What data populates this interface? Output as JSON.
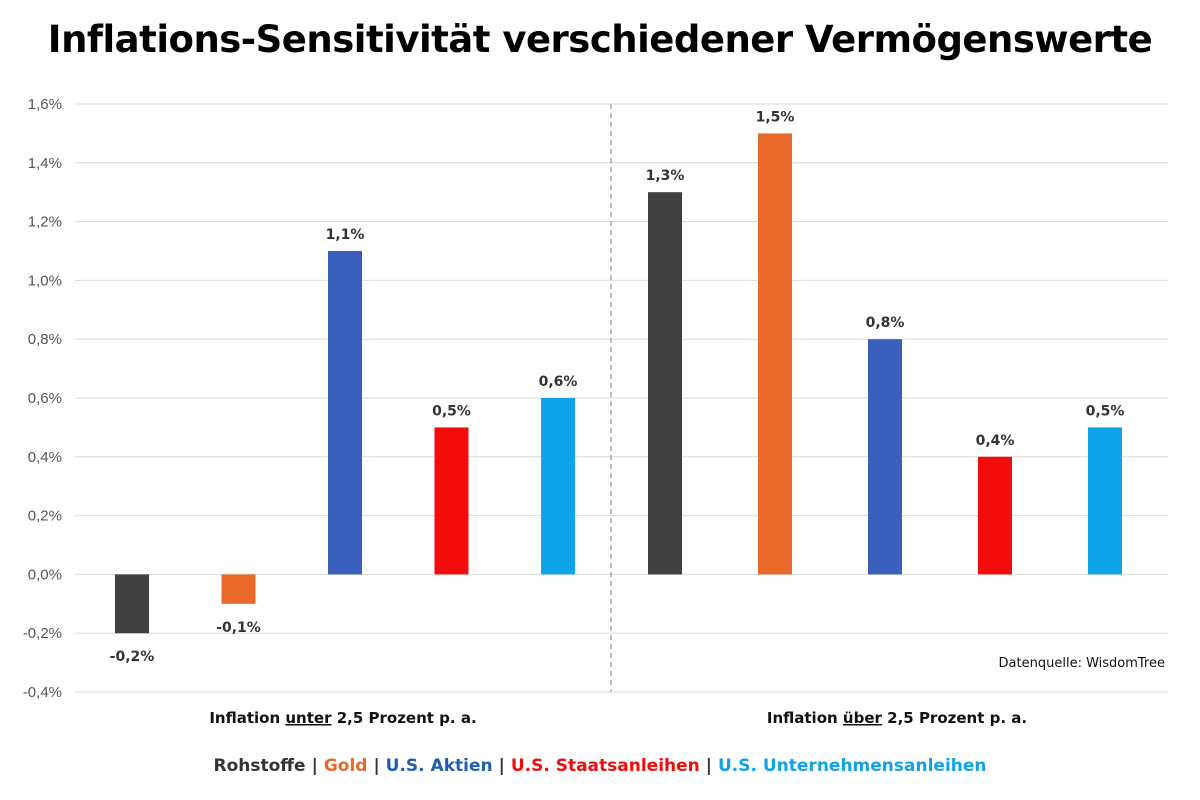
{
  "chart_data": {
    "type": "bar",
    "title": "Inflations-Sensitivität verschiedener Vermögenswerte",
    "groups": [
      {
        "prefix": "Inflation ",
        "underlined": "unter",
        "suffix": " 2,5 Prozent p. a."
      },
      {
        "prefix": "Inflation ",
        "underlined": "über",
        "suffix": " 2,5 Prozent p. a."
      }
    ],
    "series": [
      {
        "name": "Rohstoffe",
        "color": "#404040",
        "values": [
          -0.2,
          1.3
        ],
        "labels": [
          "-0,2%",
          "1,3%"
        ]
      },
      {
        "name": "Gold",
        "color": "#E8692A",
        "values": [
          -0.1,
          1.5
        ],
        "labels": [
          "-0,1%",
          "1,5%"
        ]
      },
      {
        "name": "U.S. Aktien",
        "color": "#3A5FBD",
        "values": [
          1.1,
          0.8
        ],
        "labels": [
          "1,1%",
          "0,8%"
        ]
      },
      {
        "name": "U.S. Staatsanleihen",
        "color": "#F20C0C",
        "values": [
          0.5,
          0.4
        ],
        "labels": [
          "0,5%",
          "0,4%"
        ]
      },
      {
        "name": "U.S. Unternehmensanleihen",
        "color": "#10A3E8",
        "values": [
          0.6,
          0.5
        ],
        "labels": [
          "0,6%",
          "0,5%"
        ]
      }
    ],
    "ylim": [
      -0.4,
      1.6
    ],
    "yticks": [
      -0.4,
      -0.2,
      0.0,
      0.2,
      0.4,
      0.6,
      0.8,
      1.0,
      1.2,
      1.4,
      1.6
    ],
    "ytick_labels": [
      "-0,4%",
      "-0,2%",
      "0,0%",
      "0,2%",
      "0,4%",
      "0,6%",
      "0,8%",
      "1,0%",
      "1,2%",
      "1,4%",
      "1,6%"
    ],
    "grid": true,
    "legend_position": "bottom",
    "legend_separator": "|",
    "source_note": "Datenquelle: WisdomTree"
  }
}
